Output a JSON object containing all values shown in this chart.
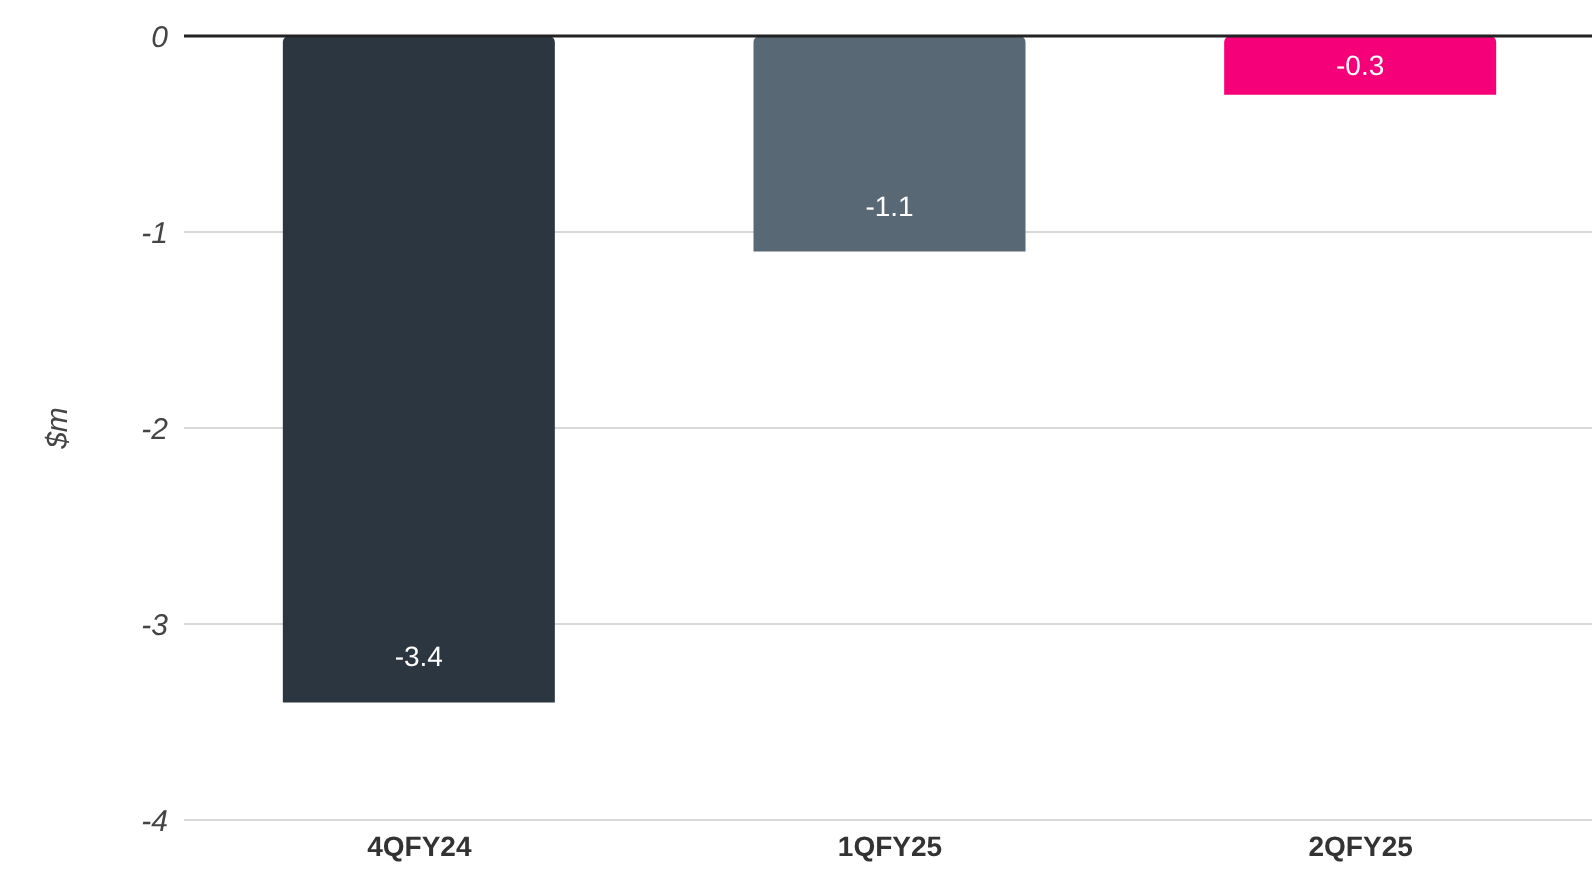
{
  "chart_data": {
    "type": "bar",
    "ylabel": "$m",
    "categories": [
      "4QFY24",
      "1QFY25",
      "2QFY25"
    ],
    "values": [
      -3.4,
      -1.1,
      -0.3
    ],
    "colors": [
      "#2b3640",
      "#596875",
      "#f50079"
    ],
    "ylim": [
      -4,
      0
    ],
    "yticks": [
      -4,
      -3,
      -2,
      -1,
      0
    ],
    "grid": "y",
    "data_labels": true
  }
}
